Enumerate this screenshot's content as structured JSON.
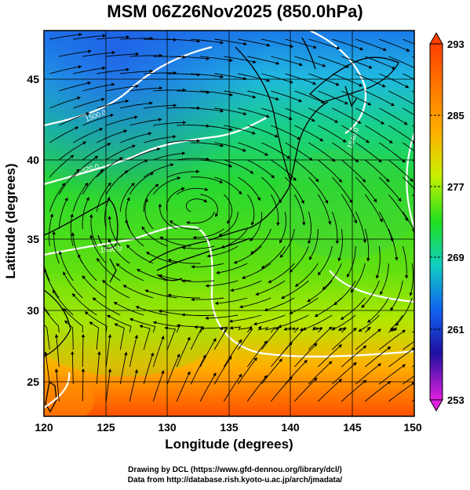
{
  "title": "MSM 06Z26Nov2025 (850.0hPa)",
  "x_axis": {
    "label": "Longitude (degrees)",
    "ticks": [
      "120",
      "125",
      "130",
      "135",
      "140",
      "145",
      "150"
    ]
  },
  "y_axis": {
    "label": "Latitude  (degrees)",
    "ticks": [
      "25",
      "30",
      "35",
      "40",
      "45"
    ]
  },
  "colorbar": {
    "ticks": [
      "293",
      "285",
      "277",
      "269",
      "261",
      "253"
    ],
    "colors": [
      "#ff4000",
      "#ffb000",
      "#c8f000",
      "#20e020",
      "#10d0c0",
      "#1060f0",
      "#2010a0",
      "#e020e0"
    ]
  },
  "contour_labels": [
    "1500.0",
    "1520.0",
    "1530.0",
    "1540.0"
  ],
  "credits": {
    "line1": "Drawing by DCL (https://www.gfd-dennou.org/library/dcl/)",
    "line2": "Data from http://database.rish.kyoto-u.ac.jp/arch/jmadata/"
  }
}
